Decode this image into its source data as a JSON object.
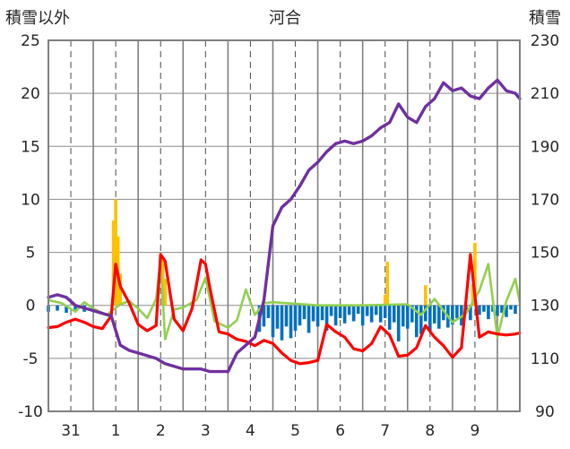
{
  "chart_data": {
    "type": "line",
    "title": "河合",
    "ylabel_left": "積雪以外",
    "ylabel_right": "積雪",
    "y_left_range": [
      -10,
      25
    ],
    "y_left_ticks": [
      "25",
      "20",
      "15",
      "10",
      "5",
      "0",
      "-5",
      "-10"
    ],
    "y_right_range": [
      90,
      230
    ],
    "y_right_ticks": [
      "230",
      "210",
      "190",
      "170",
      "150",
      "130",
      "110",
      "90"
    ],
    "x_range": [
      -1.0,
      9.5
    ],
    "x_tick_labels": [
      {
        "x": -0.5,
        "label": "31"
      },
      {
        "x": 0.5,
        "label": "1"
      },
      {
        "x": 1.5,
        "label": "2"
      },
      {
        "x": 2.5,
        "label": "3"
      },
      {
        "x": 3.5,
        "label": "4"
      },
      {
        "x": 4.5,
        "label": "5"
      },
      {
        "x": 5.5,
        "label": "6"
      },
      {
        "x": 6.5,
        "label": "7"
      },
      {
        "x": 7.5,
        "label": "8"
      },
      {
        "x": 8.5,
        "label": "9"
      }
    ],
    "day_separators": [
      0,
      1,
      2,
      3,
      4,
      5,
      6,
      7,
      8,
      9
    ],
    "midday_lines": [
      -0.5,
      0.5,
      1.5,
      2.5,
      3.5,
      4.5,
      5.5,
      6.5,
      7.5,
      8.5
    ],
    "grid": true,
    "colors": {
      "snow_depth": "#7030a0",
      "temperature": "#ff0000",
      "snow_change": "#92d050",
      "precipitation": "#ffc000",
      "snow_decrease": "#0070c0"
    },
    "series": [
      {
        "key": "snow_depth",
        "axis": "right",
        "kind": "line",
        "x": [
          -1.0,
          -0.8,
          -0.6,
          -0.4,
          -0.2,
          0.0,
          0.2,
          0.4,
          0.6,
          0.8,
          1.0,
          1.2,
          1.4,
          1.6,
          1.8,
          2.0,
          2.2,
          2.4,
          2.6,
          2.8,
          3.0,
          3.2,
          3.4,
          3.6,
          3.8,
          4.0,
          4.2,
          4.4,
          4.6,
          4.8,
          5.0,
          5.2,
          5.4,
          5.6,
          5.8,
          6.0,
          6.2,
          6.4,
          6.6,
          6.8,
          7.0,
          7.2,
          7.4,
          7.6,
          7.8,
          8.0,
          8.2,
          8.4,
          8.6,
          8.8,
          9.0,
          9.2,
          9.4,
          9.5
        ],
        "y": [
          133,
          134,
          133,
          130,
          129,
          128,
          127,
          126,
          115,
          113,
          112,
          111,
          110,
          108,
          107,
          106,
          106,
          106,
          105,
          105,
          105,
          112,
          115,
          118,
          132,
          160,
          167,
          170,
          175,
          181,
          184,
          188,
          191,
          192,
          191,
          192,
          194,
          197,
          199,
          206,
          201,
          199,
          205,
          208,
          214,
          211,
          212,
          209,
          208,
          212,
          215,
          211,
          210,
          208
        ]
      },
      {
        "key": "temperature",
        "axis": "left",
        "kind": "line",
        "x": [
          -1.0,
          -0.8,
          -0.6,
          -0.4,
          -0.2,
          0.0,
          0.2,
          0.4,
          0.5,
          0.6,
          0.8,
          1.0,
          1.2,
          1.4,
          1.5,
          1.6,
          1.8,
          2.0,
          2.2,
          2.4,
          2.5,
          2.6,
          2.8,
          3.0,
          3.2,
          3.4,
          3.6,
          3.8,
          4.0,
          4.2,
          4.4,
          4.6,
          4.8,
          5.0,
          5.2,
          5.4,
          5.6,
          5.8,
          6.0,
          6.2,
          6.4,
          6.6,
          6.8,
          7.0,
          7.2,
          7.4,
          7.6,
          7.8,
          8.0,
          8.2,
          8.4,
          8.6,
          8.8,
          9.0,
          9.2,
          9.4,
          9.5
        ],
        "y": [
          -2.1,
          -2.0,
          -1.6,
          -1.3,
          -1.6,
          -2.0,
          -2.2,
          -1.0,
          3.9,
          1.8,
          0.2,
          -1.8,
          -2.4,
          -1.9,
          4.8,
          4.2,
          -1.3,
          -2.4,
          -0.3,
          4.3,
          3.9,
          1.6,
          -2.5,
          -2.7,
          -3.2,
          -3.4,
          -3.8,
          -3.3,
          -3.6,
          -4.5,
          -5.2,
          -5.5,
          -5.4,
          -5.2,
          -1.8,
          -2.5,
          -3.0,
          -4.1,
          -4.3,
          -3.6,
          -2.0,
          -2.8,
          -4.8,
          -4.7,
          -4.0,
          -1.9,
          -3.0,
          -3.8,
          -4.9,
          -4.0,
          4.8,
          -3.0,
          -2.5,
          -2.7,
          -2.8,
          -2.7,
          -2.6
        ]
      },
      {
        "key": "snow_change",
        "axis": "left",
        "kind": "line",
        "x": [
          -1.0,
          -0.7,
          -0.4,
          -0.2,
          0.0,
          0.3,
          0.6,
          0.8,
          1.0,
          1.2,
          1.4,
          1.5,
          1.6,
          1.8,
          2.0,
          2.3,
          2.5,
          2.7,
          3.0,
          3.2,
          3.4,
          3.6,
          3.8,
          4.0,
          5.0,
          6.0,
          7.0,
          7.3,
          7.6,
          8.0,
          8.3,
          8.6,
          8.8,
          9.0,
          9.2,
          9.4,
          9.5
        ],
        "y": [
          0.5,
          0.2,
          -0.6,
          0.3,
          -0.3,
          -0.9,
          0.1,
          0.4,
          -0.3,
          -1.2,
          0.6,
          4.3,
          -3.2,
          -0.4,
          -0.2,
          0.5,
          2.6,
          -1.5,
          -2.1,
          -1.4,
          1.5,
          -0.9,
          0.2,
          0.3,
          0.0,
          0.0,
          0.1,
          -0.9,
          0.6,
          -1.6,
          -0.8,
          1.4,
          3.9,
          -3.0,
          0.4,
          2.5,
          0.3
        ]
      },
      {
        "key": "precipitation",
        "axis": "left",
        "kind": "bar",
        "x": [
          0.45,
          0.5,
          0.55,
          0.6,
          1.55,
          1.6,
          6.5,
          6.55,
          7.4,
          8.45,
          8.5
        ],
        "y": [
          8.0,
          10.0,
          6.5,
          3.0,
          4.5,
          2.5,
          1.0,
          4.1,
          1.9,
          2.0,
          5.9
        ]
      },
      {
        "key": "snow_decrease",
        "axis": "left",
        "kind": "bar",
        "x": [
          -1.0,
          -0.8,
          -0.6,
          -0.4,
          -0.2,
          3.7,
          3.8,
          3.9,
          4.0,
          4.1,
          4.2,
          4.3,
          4.4,
          4.5,
          4.6,
          4.7,
          4.8,
          4.9,
          5.0,
          5.1,
          5.2,
          5.3,
          5.4,
          5.5,
          5.6,
          5.7,
          5.8,
          5.9,
          6.0,
          6.1,
          6.2,
          6.3,
          6.4,
          6.5,
          6.6,
          6.7,
          6.8,
          6.9,
          7.0,
          7.1,
          7.2,
          7.3,
          7.4,
          7.5,
          7.6,
          7.7,
          7.8,
          7.9,
          8.0,
          8.1,
          8.2,
          8.3,
          8.4,
          8.6,
          8.7,
          8.8,
          8.9,
          9.0,
          9.1,
          9.2,
          9.3,
          9.4
        ],
        "y": [
          -0.6,
          -0.5,
          -0.7,
          -0.4,
          -0.6,
          -2.5,
          -2.0,
          -1.2,
          -3.0,
          -2.2,
          -3.3,
          -2.0,
          -3.1,
          -2.4,
          -1.9,
          -1.3,
          -2.6,
          -1.5,
          -2.0,
          -1.4,
          -2.4,
          -1.0,
          -1.9,
          -1.2,
          -1.7,
          -0.9,
          -1.5,
          -0.8,
          -1.9,
          -1.0,
          -1.6,
          -0.9,
          -1.6,
          -1.2,
          -2.3,
          -1.6,
          -3.4,
          -2.0,
          -2.2,
          -1.6,
          -3.0,
          -2.7,
          -1.5,
          -2.4,
          -1.7,
          -2.2,
          -1.4,
          -2.1,
          -1.8,
          -1.2,
          -1.9,
          -0.8,
          -1.4,
          -0.9,
          -0.6,
          -1.3,
          -0.6,
          -1.0,
          -0.7,
          -1.1,
          -0.4,
          -0.8
        ]
      }
    ]
  }
}
